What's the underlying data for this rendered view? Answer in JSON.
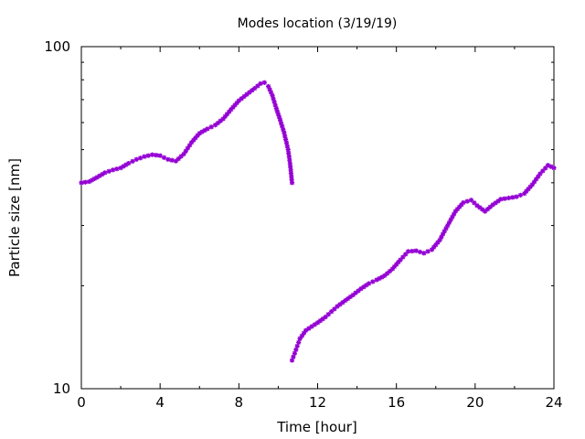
{
  "chart_data": {
    "type": "scatter",
    "title": "Modes location (3/19/19)",
    "xlabel": "Time [hour]",
    "ylabel": "Particle size [nm]",
    "xlim": [
      0,
      24
    ],
    "ylim": [
      10,
      100
    ],
    "yscale": "log",
    "grid": false,
    "legend": "none",
    "marker_color": "#9400d3",
    "x_ticks": [
      0,
      4,
      8,
      12,
      16,
      20,
      24
    ],
    "x_tick_labels": [
      "0",
      "4",
      "8",
      "12",
      "16",
      "20",
      "24"
    ],
    "y_tick_labels": [
      {
        "value": 10,
        "label": "10"
      },
      {
        "value": 100,
        "label": "100"
      }
    ],
    "series": [
      {
        "points": [
          [
            0.0,
            40.0
          ],
          [
            0.4,
            40.3
          ],
          [
            0.8,
            41.5
          ],
          [
            1.2,
            42.8
          ],
          [
            1.6,
            43.6
          ],
          [
            2.0,
            44.2
          ],
          [
            2.4,
            45.6
          ],
          [
            2.8,
            46.8
          ],
          [
            3.2,
            47.7
          ],
          [
            3.6,
            48.3
          ],
          [
            4.0,
            48.0
          ],
          [
            4.4,
            46.8
          ],
          [
            4.8,
            46.3
          ],
          [
            5.2,
            48.5
          ],
          [
            5.6,
            52.5
          ],
          [
            6.0,
            55.8
          ],
          [
            6.4,
            57.5
          ],
          [
            6.8,
            59.0
          ],
          [
            7.2,
            61.5
          ],
          [
            7.6,
            65.5
          ],
          [
            8.0,
            69.5
          ],
          [
            8.4,
            72.5
          ],
          [
            8.8,
            75.5
          ],
          [
            9.1,
            78.0
          ],
          [
            9.3,
            78.5
          ],
          [
            9.5,
            76.5
          ],
          [
            9.7,
            72.0
          ],
          [
            9.9,
            66.0
          ],
          [
            10.1,
            61.0
          ],
          [
            10.3,
            56.0
          ],
          [
            10.5,
            50.0
          ],
          [
            10.6,
            45.5
          ],
          [
            10.7,
            40.0
          ]
        ]
      },
      {
        "points": [
          [
            10.7,
            12.1
          ],
          [
            10.9,
            13.0
          ],
          [
            11.1,
            14.0
          ],
          [
            11.4,
            14.8
          ],
          [
            11.7,
            15.2
          ],
          [
            12.0,
            15.6
          ],
          [
            12.4,
            16.2
          ],
          [
            12.7,
            16.8
          ],
          [
            13.0,
            17.4
          ],
          [
            13.4,
            18.1
          ],
          [
            13.8,
            18.8
          ],
          [
            14.2,
            19.6
          ],
          [
            14.6,
            20.3
          ],
          [
            15.0,
            20.8
          ],
          [
            15.4,
            21.4
          ],
          [
            15.8,
            22.4
          ],
          [
            16.2,
            23.8
          ],
          [
            16.6,
            25.2
          ],
          [
            17.0,
            25.3
          ],
          [
            17.4,
            24.9
          ],
          [
            17.8,
            25.5
          ],
          [
            18.2,
            27.2
          ],
          [
            18.6,
            30.0
          ],
          [
            19.0,
            33.0
          ],
          [
            19.4,
            35.0
          ],
          [
            19.8,
            35.6
          ],
          [
            20.1,
            34.3
          ],
          [
            20.5,
            33.0
          ],
          [
            20.9,
            34.5
          ],
          [
            21.3,
            35.8
          ],
          [
            21.7,
            36.1
          ],
          [
            22.1,
            36.4
          ],
          [
            22.5,
            37.2
          ],
          [
            22.9,
            39.5
          ],
          [
            23.3,
            42.5
          ],
          [
            23.7,
            45.0
          ],
          [
            24.0,
            44.2
          ]
        ]
      }
    ]
  }
}
